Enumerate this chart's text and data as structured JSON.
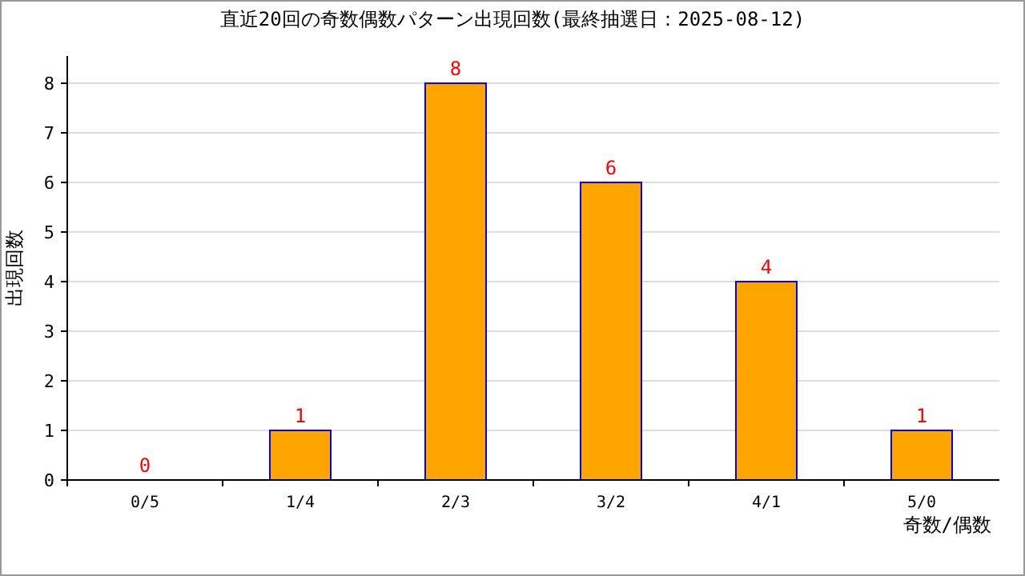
{
  "chart_data": {
    "type": "bar",
    "title": "直近20回の奇数偶数パターン出現回数(最終抽選日：2025-08-12)",
    "xlabel": "奇数/偶数",
    "ylabel": "出現回数",
    "categories": [
      "0/5",
      "1/4",
      "2/3",
      "3/2",
      "4/1",
      "5/0"
    ],
    "series": [
      {
        "color": "#ffa500",
        "values": [
          0,
          1,
          8,
          6,
          4,
          1
        ]
      }
    ],
    "ylim": [
      0,
      8.55
    ],
    "yticks": [
      0,
      1,
      2,
      3,
      4,
      5,
      6,
      7,
      8
    ],
    "grid": "y",
    "data_labels": true
  }
}
